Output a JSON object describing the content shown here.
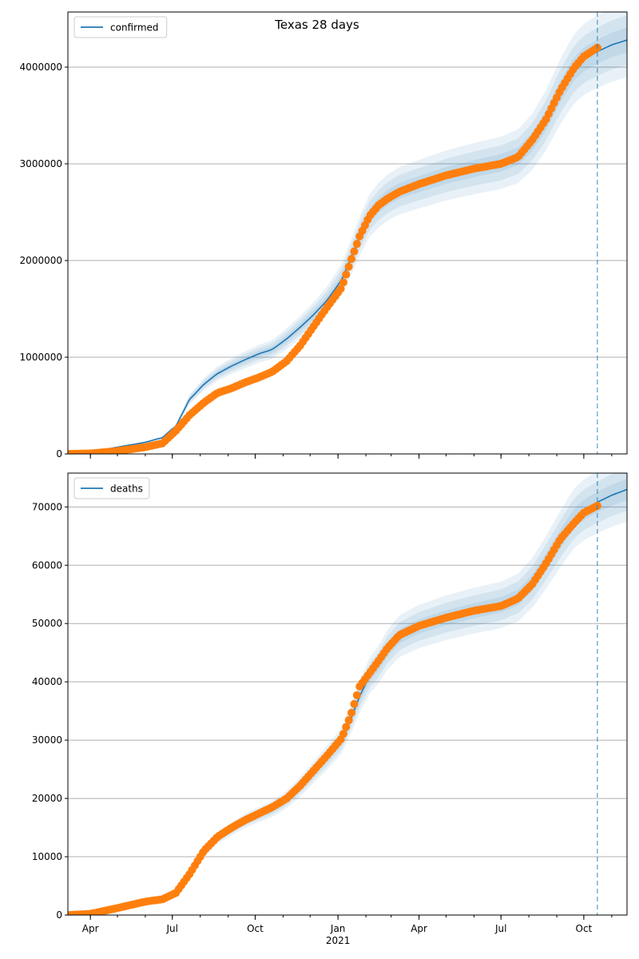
{
  "chart_data": {
    "title": "Texas 28 days",
    "type": "line",
    "x_axis": {
      "type": "date",
      "range": [
        "2020-03-07",
        "2021-11-18"
      ],
      "tick_labels": [
        "Apr",
        "Jul",
        "Oct",
        "Jan",
        "Apr",
        "Jul",
        "Oct"
      ],
      "tick_dates": [
        "2020-04-01",
        "2020-07-01",
        "2020-10-01",
        "2021-01-01",
        "2021-04-01",
        "2021-07-01",
        "2021-10-01"
      ],
      "year_label": "2021"
    },
    "forecast_start": "2021-10-16",
    "colors": {
      "model": "#1f77b4",
      "observed": "#ff7f0e",
      "band": "#1f77b4",
      "grid": "#b0b0b0"
    },
    "panels": [
      {
        "legend": "confirmed",
        "legend_position": "upper-left",
        "ylim": [
          0,
          4570000
        ],
        "y_ticks": [
          0,
          1000000,
          2000000,
          3000000,
          4000000
        ],
        "y_tick_labels": [
          "0",
          "1000000",
          "2000000",
          "3000000",
          "4000000"
        ],
        "grid": "horizontal",
        "model": {
          "dates": [
            "2020-03-07",
            "2020-04-01",
            "2020-05-01",
            "2020-06-01",
            "2020-06-20",
            "2020-07-05",
            "2020-07-20",
            "2020-08-05",
            "2020-08-20",
            "2020-09-05",
            "2020-09-20",
            "2020-10-05",
            "2020-10-20",
            "2020-11-05",
            "2020-11-20",
            "2020-12-05",
            "2020-12-20",
            "2021-01-05",
            "2021-01-15",
            "2021-01-25",
            "2021-02-05",
            "2021-02-15",
            "2021-02-25",
            "2021-03-10",
            "2021-04-01",
            "2021-05-01",
            "2021-06-01",
            "2021-07-01",
            "2021-07-20",
            "2021-08-05",
            "2021-08-20",
            "2021-09-05",
            "2021-09-20",
            "2021-10-01",
            "2021-10-16",
            "2021-11-01",
            "2021-11-18"
          ],
          "values": [
            5000,
            20000,
            70000,
            120000,
            170000,
            290000,
            560000,
            720000,
            830000,
            910000,
            975000,
            1035000,
            1080000,
            1190000,
            1310000,
            1440000,
            1590000,
            1800000,
            2020000,
            2250000,
            2460000,
            2570000,
            2650000,
            2720000,
            2790000,
            2880000,
            2950000,
            3010000,
            3080000,
            3230000,
            3450000,
            3750000,
            3980000,
            4080000,
            4160000,
            4230000,
            4280000
          ]
        },
        "bands_relative": [
          0.03,
          0.06,
          0.09
        ],
        "observed": {
          "dates": [
            "2020-03-07",
            "2020-04-01",
            "2020-05-01",
            "2020-06-01",
            "2020-06-20",
            "2020-07-05",
            "2020-07-20",
            "2020-08-05",
            "2020-08-20",
            "2020-09-05",
            "2020-09-20",
            "2020-10-05",
            "2020-10-20",
            "2020-11-05",
            "2020-11-20",
            "2020-12-05",
            "2020-12-20",
            "2021-01-05",
            "2021-01-15",
            "2021-01-25",
            "2021-02-05",
            "2021-02-15",
            "2021-02-25",
            "2021-03-10",
            "2021-04-01",
            "2021-05-01",
            "2021-06-01",
            "2021-07-01",
            "2021-07-20",
            "2021-08-05",
            "2021-08-20",
            "2021-09-05",
            "2021-09-20",
            "2021-10-01",
            "2021-10-16"
          ],
          "values": [
            0,
            5000,
            30000,
            70000,
            110000,
            240000,
            400000,
            530000,
            630000,
            680000,
            740000,
            790000,
            850000,
            960000,
            1120000,
            1320000,
            1520000,
            1720000,
            1990000,
            2250000,
            2460000,
            2570000,
            2640000,
            2710000,
            2790000,
            2880000,
            2950000,
            3000000,
            3070000,
            3250000,
            3460000,
            3760000,
            3990000,
            4110000,
            4200000
          ]
        }
      },
      {
        "legend": "deaths",
        "legend_position": "upper-left",
        "ylim": [
          0,
          75800
        ],
        "y_ticks": [
          0,
          10000,
          20000,
          30000,
          40000,
          50000,
          60000,
          70000
        ],
        "y_tick_labels": [
          "0",
          "10000",
          "20000",
          "30000",
          "40000",
          "50000",
          "60000",
          "70000"
        ],
        "grid": "horizontal",
        "model": {
          "dates": [
            "2020-03-07",
            "2020-04-01",
            "2020-05-01",
            "2020-06-01",
            "2020-06-20",
            "2020-07-05",
            "2020-07-20",
            "2020-08-05",
            "2020-08-20",
            "2020-09-05",
            "2020-09-20",
            "2020-10-05",
            "2020-10-20",
            "2020-11-05",
            "2020-11-20",
            "2020-12-05",
            "2020-12-20",
            "2021-01-05",
            "2021-01-15",
            "2021-01-25",
            "2021-02-05",
            "2021-02-15",
            "2021-02-25",
            "2021-03-10",
            "2021-04-01",
            "2021-05-01",
            "2021-06-01",
            "2021-07-01",
            "2021-07-20",
            "2021-08-05",
            "2021-08-20",
            "2021-09-05",
            "2021-09-20",
            "2021-10-01",
            "2021-10-16",
            "2021-11-01",
            "2021-11-18"
          ],
          "values": [
            0,
            200,
            1200,
            2300,
            2700,
            3800,
            6800,
            10800,
            13200,
            14800,
            16200,
            17200,
            18200,
            19800,
            22000,
            24500,
            27000,
            30000,
            33500,
            37500,
            41000,
            43000,
            45500,
            47800,
            49500,
            51000,
            52200,
            53200,
            54500,
            57000,
            60500,
            64500,
            68000,
            69500,
            70800,
            72000,
            73000
          ]
        },
        "bands_relative": [
          0.025,
          0.05,
          0.075
        ],
        "observed": {
          "dates": [
            "2020-03-07",
            "2020-04-01",
            "2020-05-01",
            "2020-06-01",
            "2020-06-20",
            "2020-07-05",
            "2020-07-20",
            "2020-08-05",
            "2020-08-20",
            "2020-09-05",
            "2020-09-20",
            "2020-10-05",
            "2020-10-20",
            "2020-11-05",
            "2020-11-20",
            "2020-12-05",
            "2020-12-20",
            "2021-01-05",
            "2021-01-15",
            "2021-01-25",
            "2021-02-05",
            "2021-02-15",
            "2021-02-25",
            "2021-03-10",
            "2021-04-01",
            "2021-05-01",
            "2021-06-01",
            "2021-07-01",
            "2021-07-20",
            "2021-08-05",
            "2021-08-20",
            "2021-09-05",
            "2021-09-20",
            "2021-10-01",
            "2021-10-16"
          ],
          "values": [
            0,
            200,
            1200,
            2300,
            2700,
            3800,
            7000,
            11000,
            13400,
            15000,
            16300,
            17400,
            18500,
            20000,
            22200,
            24800,
            27400,
            30300,
            34200,
            39200,
            41500,
            43600,
            45800,
            48000,
            49600,
            51000,
            52200,
            53000,
            54300,
            56800,
            60300,
            64500,
            67200,
            69000,
            70200
          ]
        }
      }
    ]
  }
}
